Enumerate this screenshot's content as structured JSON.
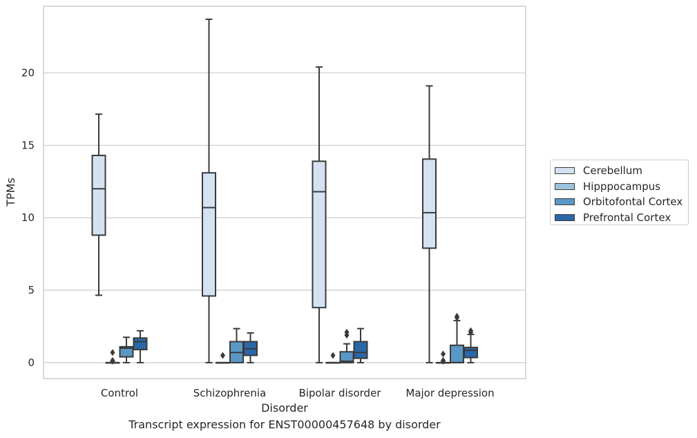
{
  "chart_data": {
    "type": "box",
    "xlabel": "Disorder",
    "ylabel": "TPMs",
    "caption": "Transcript expression for ENST00000457648 by disorder",
    "categories": [
      "Control",
      "Schizophrenia",
      "Bipolar disorder",
      "Major depression"
    ],
    "ylim": [
      -1.1,
      24.6
    ],
    "yticks": [
      0,
      5,
      10,
      15,
      20
    ],
    "grid": true,
    "legend_position": "right",
    "series": [
      {
        "name": "Cerebellum",
        "color": "#d4e2f1",
        "boxes": [
          {
            "whislo": 4.65,
            "q1": 8.8,
            "med": 12.0,
            "q3": 14.3,
            "whishi": 17.15,
            "fliers": []
          },
          {
            "whislo": 0.0,
            "q1": 4.6,
            "med": 10.7,
            "q3": 13.1,
            "whishi": 23.7,
            "fliers": []
          },
          {
            "whislo": 0.0,
            "q1": 3.8,
            "med": 11.8,
            "q3": 13.9,
            "whishi": 20.4,
            "fliers": []
          },
          {
            "whislo": 0.0,
            "q1": 7.9,
            "med": 10.35,
            "q3": 14.05,
            "whishi": 19.1,
            "fliers": []
          }
        ]
      },
      {
        "name": "Hipppocampus",
        "color": "#9cc3dd",
        "boxes": [
          {
            "whislo": 0.0,
            "q1": 0.0,
            "med": 0.0,
            "q3": 0.0,
            "whishi": 0.0,
            "fliers": [
              0.1,
              0.15,
              0.7
            ]
          },
          {
            "whislo": 0.0,
            "q1": 0.0,
            "med": 0.0,
            "q3": 0.0,
            "whishi": 0.0,
            "fliers": [
              0.5
            ]
          },
          {
            "whislo": 0.0,
            "q1": 0.0,
            "med": 0.0,
            "q3": 0.0,
            "whishi": 0.0,
            "fliers": [
              0.5
            ]
          },
          {
            "whislo": 0.0,
            "q1": 0.0,
            "med": 0.0,
            "q3": 0.0,
            "whishi": 0.0,
            "fliers": [
              0.1,
              0.15,
              0.6
            ]
          }
        ]
      },
      {
        "name": "Orbitofontal Cortex",
        "color": "#5998c5",
        "boxes": [
          {
            "whislo": 0.0,
            "q1": 0.4,
            "med": 1.0,
            "q3": 1.1,
            "whishi": 1.75,
            "fliers": []
          },
          {
            "whislo": 0.0,
            "q1": 0.0,
            "med": 0.7,
            "q3": 1.45,
            "whishi": 2.35,
            "fliers": []
          },
          {
            "whislo": 0.0,
            "q1": 0.0,
            "med": 0.1,
            "q3": 0.75,
            "whishi": 1.3,
            "fliers": [
              1.9,
              2.1
            ]
          },
          {
            "whislo": 0.0,
            "q1": 0.0,
            "med": 0.0,
            "q3": 1.2,
            "whishi": 2.9,
            "fliers": [
              3.1,
              3.2
            ]
          }
        ]
      },
      {
        "name": "Prefrontal Cortex",
        "color": "#2a67a8",
        "boxes": [
          {
            "whislo": 0.0,
            "q1": 0.9,
            "med": 1.45,
            "q3": 1.7,
            "whishi": 2.2,
            "fliers": []
          },
          {
            "whislo": 0.0,
            "q1": 0.5,
            "med": 0.95,
            "q3": 1.45,
            "whishi": 2.05,
            "fliers": []
          },
          {
            "whislo": 0.0,
            "q1": 0.3,
            "med": 0.7,
            "q3": 1.45,
            "whishi": 2.35,
            "fliers": []
          },
          {
            "whislo": 0.0,
            "q1": 0.35,
            "med": 0.85,
            "q3": 1.05,
            "whishi": 1.95,
            "fliers": [
              2.1,
              2.2
            ]
          }
        ]
      }
    ]
  }
}
